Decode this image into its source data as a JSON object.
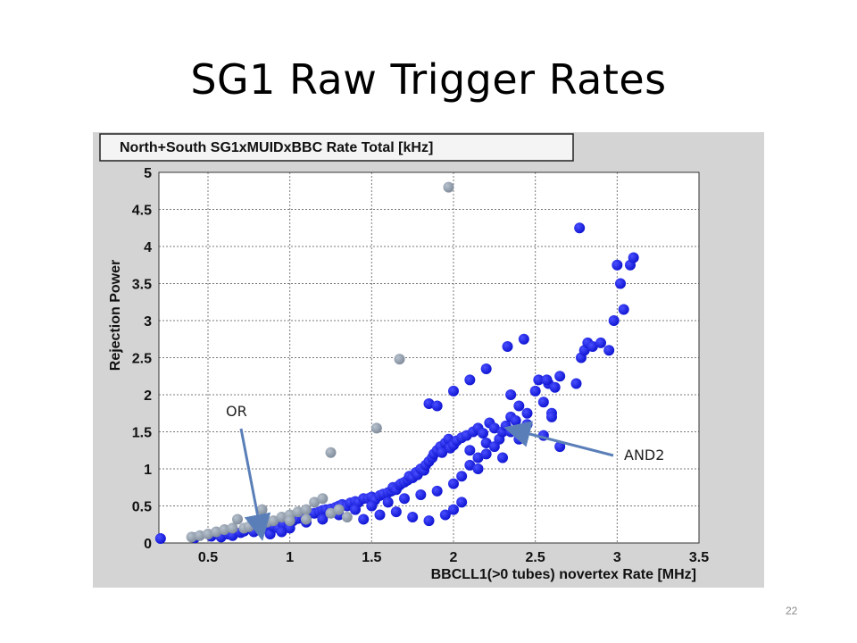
{
  "slide": {
    "title": "SG1 Raw Trigger Rates",
    "page_number": "22"
  },
  "annotations": {
    "or_label": "OR",
    "and2_label": "AND2"
  },
  "colors": {
    "and2": "#1a1ee8",
    "or": "#8e9aaa",
    "grid": "#7a7a7a",
    "frame_bg": "#d4d4d4",
    "arrow": "#5a7fb8"
  },
  "chart_data": {
    "type": "scatter",
    "title": "North+South SG1xMUIDxBBC Rate Total [kHz]",
    "xlabel": "BBCLL1(>0 tubes) novertex Rate [MHz]",
    "ylabel": "Rejection Power",
    "xlim": [
      0.2,
      3.5
    ],
    "ylim": [
      0,
      5
    ],
    "x_ticks": [
      "0.5",
      "1",
      "1.5",
      "2",
      "2.5",
      "3",
      "3.5"
    ],
    "y_ticks": [
      "0",
      "0.5",
      "1",
      "1.5",
      "2",
      "2.5",
      "3",
      "3.5",
      "4",
      "4.5",
      "5"
    ],
    "grid": true,
    "series": [
      {
        "name": "AND2",
        "points": [
          [
            0.21,
            0.06
          ],
          [
            0.42,
            0.07
          ],
          [
            0.52,
            0.09
          ],
          [
            0.58,
            0.08
          ],
          [
            0.62,
            0.12
          ],
          [
            0.65,
            0.1
          ],
          [
            0.7,
            0.14
          ],
          [
            0.72,
            0.16
          ],
          [
            0.78,
            0.15
          ],
          [
            0.82,
            0.18
          ],
          [
            0.85,
            0.2
          ],
          [
            0.88,
            0.12
          ],
          [
            0.9,
            0.22
          ],
          [
            0.93,
            0.2
          ],
          [
            0.96,
            0.25
          ],
          [
            1.0,
            0.28
          ],
          [
            1.02,
            0.3
          ],
          [
            1.05,
            0.33
          ],
          [
            1.08,
            0.35
          ],
          [
            1.1,
            0.36
          ],
          [
            1.12,
            0.4
          ],
          [
            1.15,
            0.4
          ],
          [
            1.18,
            0.42
          ],
          [
            1.2,
            0.44
          ],
          [
            1.22,
            0.45
          ],
          [
            1.25,
            0.46
          ],
          [
            1.28,
            0.48
          ],
          [
            1.3,
            0.5
          ],
          [
            1.32,
            0.52
          ],
          [
            1.35,
            0.5
          ],
          [
            1.37,
            0.54
          ],
          [
            1.4,
            0.56
          ],
          [
            1.42,
            0.55
          ],
          [
            1.45,
            0.6
          ],
          [
            1.48,
            0.6
          ],
          [
            1.5,
            0.62
          ],
          [
            1.52,
            0.58
          ],
          [
            1.55,
            0.64
          ],
          [
            1.57,
            0.66
          ],
          [
            1.6,
            0.68
          ],
          [
            1.62,
            0.7
          ],
          [
            1.63,
            0.75
          ],
          [
            1.65,
            0.72
          ],
          [
            1.67,
            0.78
          ],
          [
            1.68,
            0.8
          ],
          [
            1.7,
            0.82
          ],
          [
            1.72,
            0.85
          ],
          [
            1.73,
            0.9
          ],
          [
            1.75,
            0.88
          ],
          [
            1.77,
            0.95
          ],
          [
            1.78,
            0.92
          ],
          [
            1.8,
            1.0
          ],
          [
            1.82,
            0.98
          ],
          [
            1.83,
            1.05
          ],
          [
            1.85,
            1.1
          ],
          [
            1.87,
            1.15
          ],
          [
            1.88,
            1.2
          ],
          [
            1.9,
            1.25
          ],
          [
            1.92,
            1.3
          ],
          [
            1.93,
            1.22
          ],
          [
            1.95,
            1.35
          ],
          [
            1.97,
            1.4
          ],
          [
            1.98,
            1.28
          ],
          [
            2.0,
            1.32
          ],
          [
            2.02,
            1.38
          ],
          [
            2.05,
            1.42
          ],
          [
            2.08,
            1.45
          ],
          [
            2.1,
            1.25
          ],
          [
            2.12,
            1.5
          ],
          [
            2.15,
            1.55
          ],
          [
            2.18,
            1.48
          ],
          [
            2.2,
            1.35
          ],
          [
            2.22,
            1.62
          ],
          [
            2.25,
            1.55
          ],
          [
            2.28,
            1.4
          ],
          [
            2.3,
            1.5
          ],
          [
            2.32,
            1.58
          ],
          [
            2.35,
            1.7
          ],
          [
            2.38,
            1.65
          ],
          [
            2.4,
            1.4
          ],
          [
            1.45,
            0.32
          ],
          [
            1.55,
            0.38
          ],
          [
            1.65,
            0.42
          ],
          [
            1.75,
            0.35
          ],
          [
            1.85,
            0.3
          ],
          [
            1.95,
            0.38
          ],
          [
            2.0,
            0.45
          ],
          [
            2.05,
            0.55
          ],
          [
            1.3,
            0.38
          ],
          [
            1.2,
            0.32
          ],
          [
            1.1,
            0.28
          ],
          [
            1.0,
            0.2
          ],
          [
            0.95,
            0.15
          ],
          [
            1.4,
            0.45
          ],
          [
            1.5,
            0.5
          ],
          [
            1.6,
            0.55
          ],
          [
            1.7,
            0.6
          ],
          [
            1.8,
            0.65
          ],
          [
            1.9,
            0.7
          ],
          [
            2.0,
            0.8
          ],
          [
            2.05,
            0.9
          ],
          [
            2.1,
            1.05
          ],
          [
            2.15,
            1.15
          ],
          [
            2.2,
            1.2
          ],
          [
            1.85,
            1.88
          ],
          [
            1.9,
            1.85
          ],
          [
            2.0,
            2.05
          ],
          [
            2.1,
            2.2
          ],
          [
            2.2,
            2.35
          ],
          [
            2.33,
            2.65
          ],
          [
            2.35,
            2.0
          ],
          [
            2.4,
            1.85
          ],
          [
            2.45,
            1.75
          ],
          [
            2.5,
            2.05
          ],
          [
            2.52,
            2.2
          ],
          [
            2.55,
            1.9
          ],
          [
            2.58,
            2.15
          ],
          [
            2.6,
            1.75
          ],
          [
            2.62,
            2.1
          ],
          [
            2.65,
            2.25
          ],
          [
            2.43,
            2.75
          ],
          [
            2.57,
            2.2
          ],
          [
            2.6,
            1.7
          ],
          [
            2.75,
            2.15
          ],
          [
            2.78,
            2.5
          ],
          [
            2.8,
            2.6
          ],
          [
            2.82,
            2.7
          ],
          [
            2.85,
            2.65
          ],
          [
            2.9,
            2.7
          ],
          [
            2.95,
            2.6
          ],
          [
            2.98,
            3.0
          ],
          [
            3.0,
            3.75
          ],
          [
            3.02,
            3.5
          ],
          [
            3.04,
            3.15
          ],
          [
            3.08,
            3.75
          ],
          [
            3.1,
            3.85
          ],
          [
            2.77,
            4.25
          ],
          [
            2.35,
            1.5
          ],
          [
            2.45,
            1.6
          ],
          [
            2.55,
            1.45
          ],
          [
            2.65,
            1.3
          ],
          [
            2.25,
            1.3
          ],
          [
            2.15,
            1.0
          ],
          [
            2.3,
            1.15
          ]
        ]
      },
      {
        "name": "OR",
        "points": [
          [
            0.4,
            0.08
          ],
          [
            0.45,
            0.1
          ],
          [
            0.5,
            0.12
          ],
          [
            0.55,
            0.15
          ],
          [
            0.6,
            0.18
          ],
          [
            0.65,
            0.2
          ],
          [
            0.68,
            0.32
          ],
          [
            0.72,
            0.2
          ],
          [
            0.75,
            0.22
          ],
          [
            0.8,
            0.25
          ],
          [
            0.83,
            0.45
          ],
          [
            0.86,
            0.28
          ],
          [
            0.9,
            0.3
          ],
          [
            0.95,
            0.35
          ],
          [
            1.0,
            0.38
          ],
          [
            1.05,
            0.42
          ],
          [
            1.1,
            0.45
          ],
          [
            1.15,
            0.55
          ],
          [
            1.2,
            0.6
          ],
          [
            1.25,
            0.4
          ],
          [
            1.3,
            0.45
          ],
          [
            1.35,
            0.35
          ],
          [
            1.0,
            0.3
          ],
          [
            1.1,
            0.32
          ],
          [
            1.25,
            1.22
          ],
          [
            1.53,
            1.55
          ],
          [
            1.67,
            2.48
          ],
          [
            1.97,
            4.8
          ]
        ]
      }
    ]
  }
}
